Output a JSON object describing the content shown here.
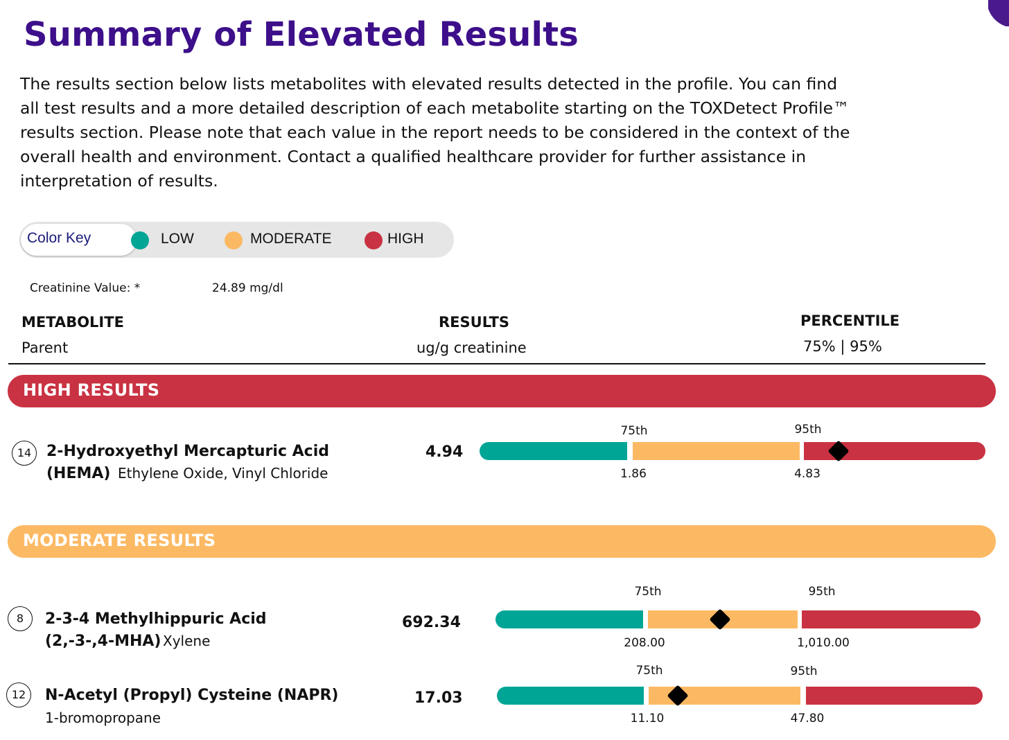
{
  "title": "Summary of Elevated Results",
  "intro_lines": [
    "The results section below lists metabolites with elevated results detected in the profile. You can find",
    "all test results and a more detailed description of each metabolite starting on the TOXDetect Profile™",
    "results section. Please note that each value in the report needs to be considered in the context of the",
    "overall health and environment. Contact a qualified healthcare provider for further assistance in",
    "interpretation of results."
  ],
  "color_key": {
    "label": "Color Key",
    "low": "LOW",
    "moderate": "MODERATE",
    "high": "HIGH"
  },
  "colors": {
    "low": "#00a596",
    "moderate": "#fcb964",
    "high": "#c93242",
    "title": "#3d0f8a"
  },
  "creatinine": {
    "label": "Creatinine Value: *",
    "value": "24.89 mg/dl"
  },
  "columns": {
    "metabolite": "METABOLITE",
    "metabolite_sub": "Parent",
    "results": "RESULTS",
    "results_sub": "ug/g creatinine",
    "percentile": "PERCENTILE",
    "percentile_sub": "75% | 95%"
  },
  "sections": {
    "high": "HIGH RESULTS",
    "moderate": "MODERATE RESULTS"
  },
  "high_results": [
    {
      "number": "14",
      "name_line1": "2-Hydroxyethyl Mercapturic Acid",
      "name_line2": "(HEMA)",
      "parent": "Ethylene Oxide, Vinyl Chloride",
      "value": "4.94",
      "p75_label": "75th",
      "p95_label": "95th",
      "p75_value": "1.86",
      "p95_value": "4.83",
      "marker_fraction": 0.19
    }
  ],
  "moderate_results": [
    {
      "number": "8",
      "name_line1": "2-3-4 Methylhippuric Acid",
      "name_line2": "(2,-3-,4-MHA)",
      "parent": "Xylene",
      "value": "692.34",
      "p75_label": "75th",
      "p95_label": "95th",
      "p75_value": "208.00",
      "p95_value": "1,010.00",
      "marker_fraction": 0.48
    },
    {
      "number": "12",
      "name_line1": "N-Acetyl (Propyl) Cysteine (NAPR)",
      "name_line2": "",
      "parent": "1-bromopropane",
      "value": "17.03",
      "p75_label": "75th",
      "p95_label": "95th",
      "p75_value": "11.10",
      "p95_value": "47.80",
      "marker_fraction": 0.19
    }
  ]
}
